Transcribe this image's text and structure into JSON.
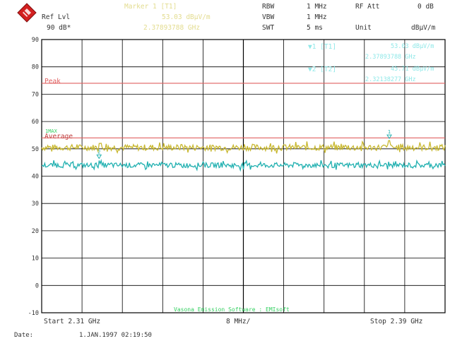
{
  "header": {
    "marker_label": "Marker 1 [T1]",
    "marker_value": "53.03 dBµV/m",
    "marker_freq": "2.37893788 GHz",
    "ref_lvl_label": "Ref Lvl",
    "ref_lvl_value": "90 dB*",
    "rbw_label": "RBW",
    "rbw_value": "1 MHz",
    "vbw_label": "VBW",
    "vbw_value": "1 MHz",
    "swt_label": "SWT",
    "swt_value": "5 ms",
    "rf_att_label": "RF Att",
    "rf_att_value": "0 dB",
    "unit_label": "Unit",
    "unit_value": "dBµV/m"
  },
  "markers_box": {
    "m1_label": "▼1 [T1]",
    "m1_value": "53.03 dBµV/m",
    "m1_freq": "2.37893788 GHz",
    "m2_label": "▼2 [T2]",
    "m2_value": "45.71 dBµV/m",
    "m2_freq": "2.32138277 GHz"
  },
  "trace_label": "1MAX",
  "footer": {
    "start": "Start 2.31 GHz",
    "span": "8 MHz/",
    "stop": "Stop 2.39 GHz",
    "software": "Vasona Emission Software : EMIsoft",
    "date_label": "Date:",
    "date_value": "1.JAN.1997   02:19:50"
  },
  "colors": {
    "limit_line": "#e06060",
    "trace_max": "#c8b830",
    "trace_avg": "#20b0b0",
    "grid": "#000000"
  },
  "chart_data": {
    "type": "line",
    "x_range_ghz": [
      2.31,
      2.39
    ],
    "ylim": [
      -10,
      90
    ],
    "y_ticks": [
      "90",
      "80",
      "70",
      "60",
      "50",
      "40",
      "30",
      "20",
      "10",
      "0",
      "-10"
    ],
    "grid": true,
    "limit_lines": [
      {
        "name": "Peak",
        "value": 74
      },
      {
        "name": "Average",
        "value": 54
      }
    ],
    "series": [
      {
        "name": "1MAX",
        "color": "#c8b830",
        "baseline": 50.5,
        "noise": 1.6,
        "spikes": [
          {
            "x": 2.3215,
            "y": 52
          },
          {
            "x": 2.3378,
            "y": 51.6
          },
          {
            "x": 2.3789,
            "y": 53.03
          }
        ]
      },
      {
        "color": "#20b0b0",
        "baseline": 44,
        "noise": 1.3,
        "spikes": [
          {
            "x": 2.3214,
            "y": 45.71
          },
          {
            "x": 2.342,
            "y": 45.2
          },
          {
            "x": 2.36,
            "y": 45.0
          }
        ]
      }
    ],
    "markers": [
      {
        "id": "1",
        "x": 2.37893788,
        "y": 53.03
      },
      {
        "id": "2",
        "x": 2.32138277,
        "y": 45.71
      }
    ]
  }
}
